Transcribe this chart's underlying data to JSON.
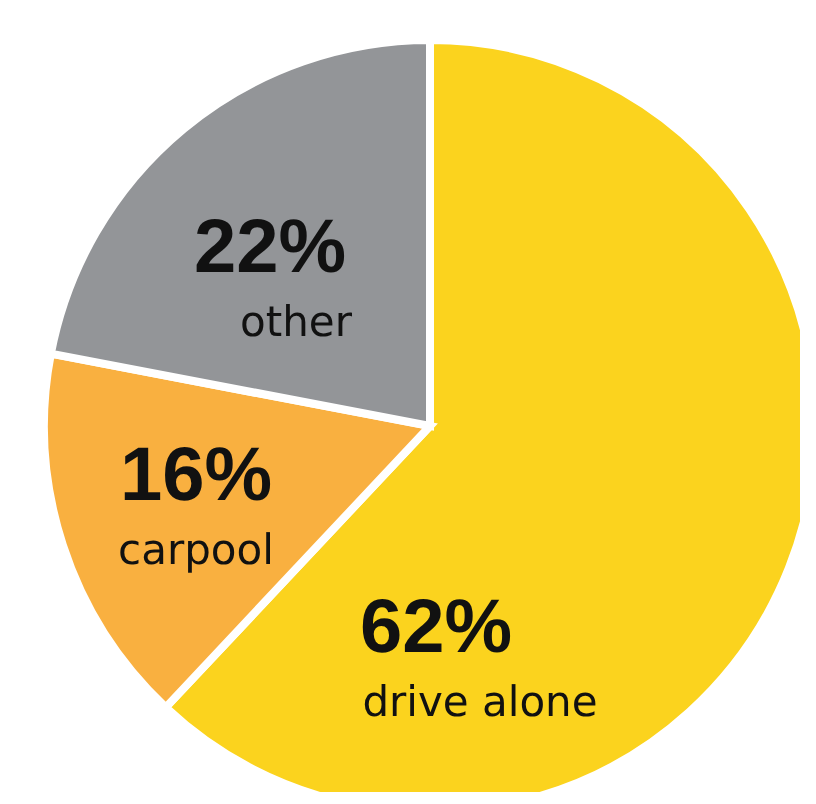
{
  "chart_data": {
    "type": "pie",
    "categories": [
      "drive alone",
      "carpool",
      "other"
    ],
    "values": [
      62,
      16,
      22
    ],
    "colors": [
      "#fbd31e",
      "#f9b040",
      "#939598"
    ],
    "value_labels": [
      "62%",
      "16%",
      "22%"
    ]
  }
}
